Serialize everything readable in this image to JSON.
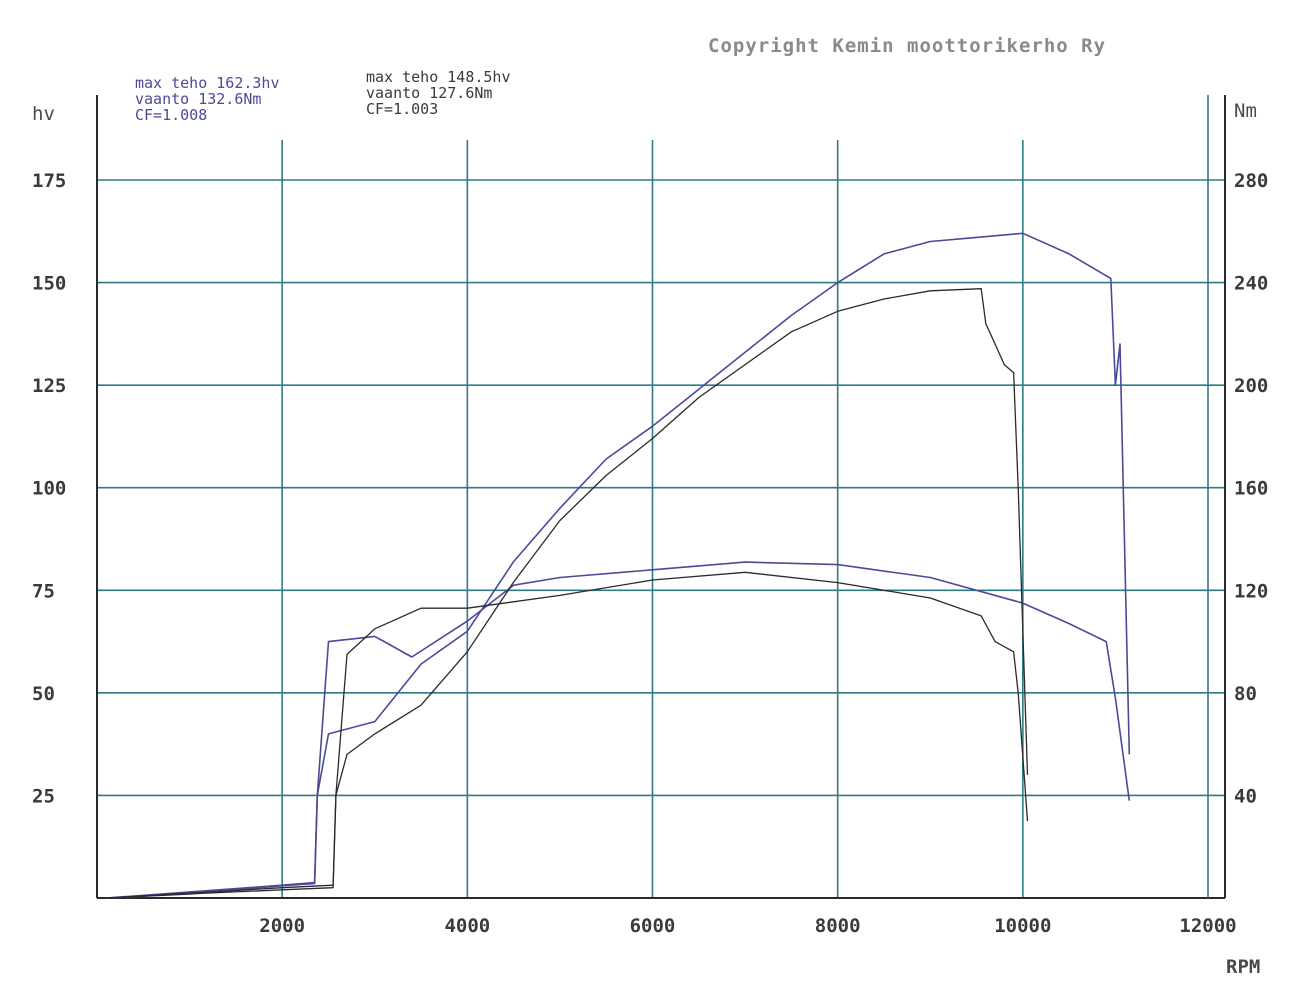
{
  "copyright": "Copyright Kemin moottorikerho Ry",
  "legend": [
    {
      "lines": [
        "max teho 162.3hv",
        "vaanto 132.6Nm",
        "CF=1.008"
      ],
      "color": "#4a4a9a"
    },
    {
      "lines": [
        "max teho 148.5hv",
        "vaanto 127.6Nm",
        "CF=1.003"
      ],
      "color": "#3a3a3a"
    }
  ],
  "colors": {
    "grid": "#2f7a86",
    "axis": "#2a2a2a",
    "run1": "#4a4a9a",
    "run2": "#2a2a2a"
  },
  "chart_data": {
    "type": "line",
    "xlabel": "RPM",
    "ylabel_left": "hv",
    "ylabel_right": "Nm",
    "xlim": [
      0,
      12000
    ],
    "ylim_left": [
      0,
      175
    ],
    "ylim_right": [
      0,
      280
    ],
    "x_ticks": [
      "2000",
      "4000",
      "6000",
      "8000",
      "10000",
      "12000"
    ],
    "y_ticks_left": [
      "25",
      "50",
      "75",
      "100",
      "125",
      "150",
      "175"
    ],
    "y_ticks_right": [
      "40",
      "80",
      "120",
      "160",
      "200",
      "240",
      "280"
    ],
    "grid": true,
    "series": [
      {
        "name": "max teho 162.3hv",
        "axis": "left",
        "style": "run1",
        "x": [
          100,
          1000,
          2000,
          2350,
          2380,
          2500,
          3000,
          3500,
          4000,
          4500,
          5000,
          5500,
          6000,
          6500,
          7000,
          7500,
          8000,
          8500,
          9000,
          9500,
          10000,
          10500,
          10800,
          10950,
          11000,
          11050,
          11150
        ],
        "y": [
          0,
          1,
          3,
          3.5,
          25,
          40,
          43,
          57,
          65,
          82,
          95,
          107,
          115,
          124,
          133,
          142,
          150,
          157,
          160,
          161,
          162,
          157,
          153,
          151,
          125,
          135,
          35
        ]
      },
      {
        "name": "vaanto 132.6Nm",
        "axis": "right",
        "style": "run1",
        "x": [
          100,
          2000,
          2350,
          2380,
          2500,
          3000,
          3400,
          4000,
          4500,
          5000,
          6000,
          7000,
          8000,
          9000,
          10000,
          10500,
          10900,
          11000,
          11150
        ],
        "y": [
          0,
          5,
          6,
          40,
          100,
          102,
          94,
          108,
          122,
          125,
          128,
          131,
          130,
          125,
          115,
          107,
          100,
          78,
          38
        ]
      },
      {
        "name": "max teho 148.5hv",
        "axis": "left",
        "style": "run2",
        "x": [
          100,
          1000,
          2000,
          2550,
          2580,
          2700,
          3000,
          3500,
          4000,
          4500,
          5000,
          5500,
          6000,
          6500,
          7000,
          7500,
          8000,
          8500,
          9000,
          9550,
          9600,
          9700,
          9800,
          9900,
          9950,
          10050
        ],
        "y": [
          0,
          1,
          2,
          2.5,
          25,
          35,
          40,
          47,
          60,
          77,
          92,
          103,
          112,
          122,
          130,
          138,
          143,
          146,
          148,
          148.5,
          140,
          135,
          130,
          128,
          100,
          30
        ]
      },
      {
        "name": "vaanto 127.6Nm",
        "axis": "right",
        "style": "run2",
        "x": [
          100,
          2000,
          2550,
          2580,
          2700,
          3000,
          3500,
          4000,
          5000,
          6000,
          7000,
          8000,
          9000,
          9550,
          9700,
          9900,
          9950,
          10050
        ],
        "y": [
          0,
          4,
          5,
          40,
          95,
          105,
          113,
          113,
          118,
          124,
          127,
          123,
          117,
          110,
          100,
          96,
          80,
          30
        ]
      }
    ]
  }
}
